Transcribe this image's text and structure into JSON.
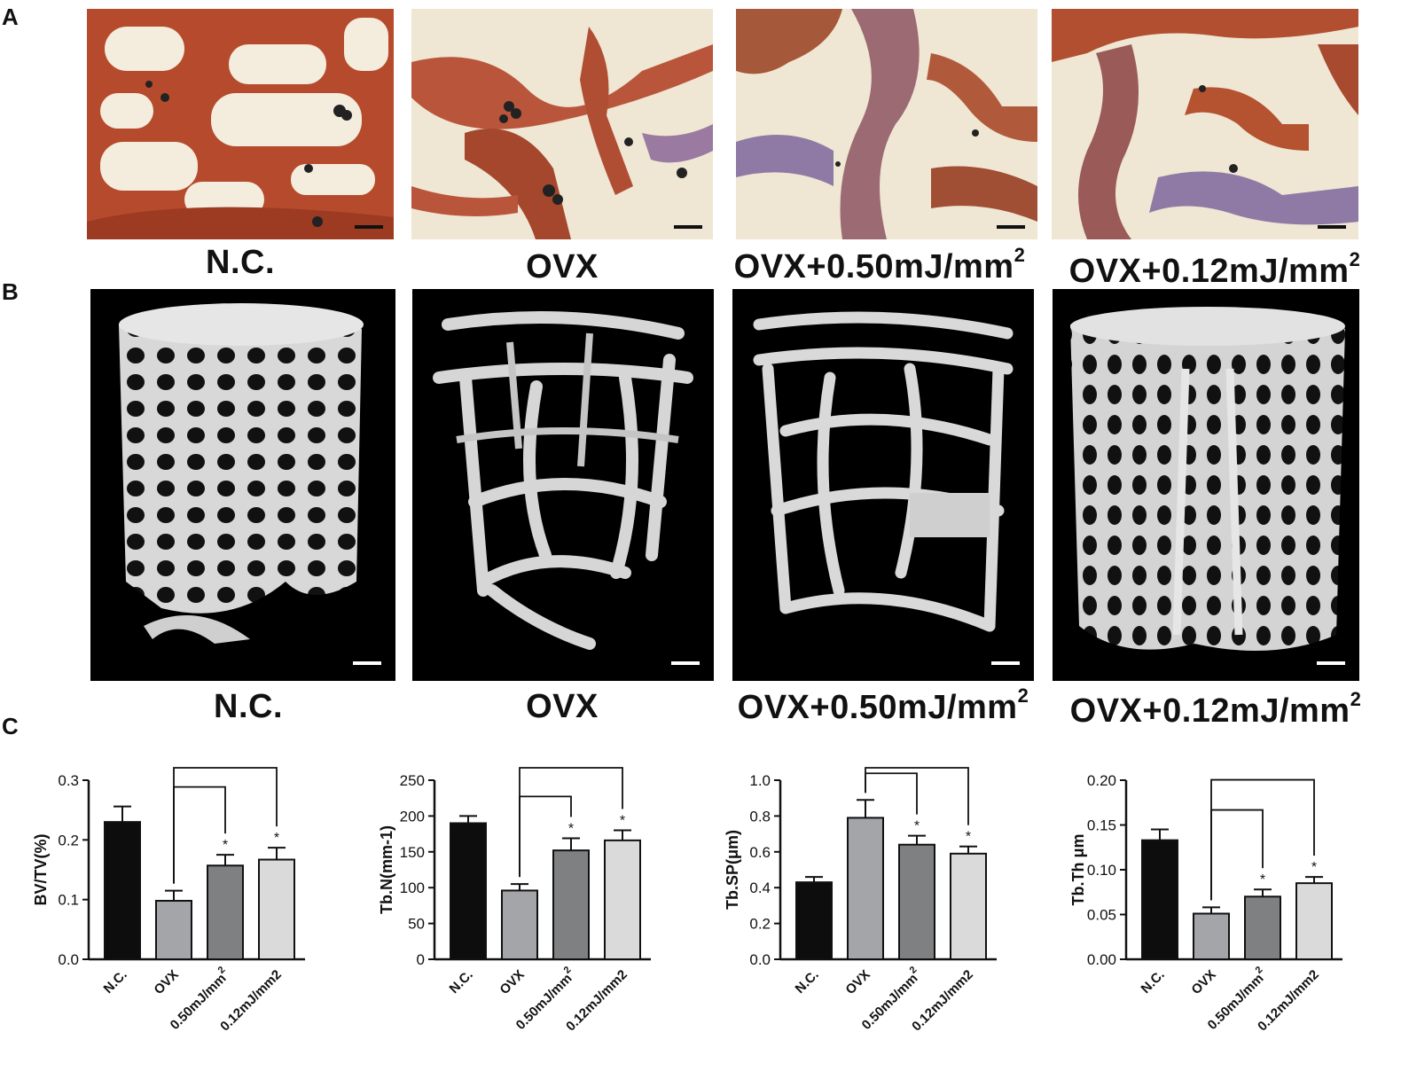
{
  "panels": {
    "a": "A",
    "b": "B",
    "c": "C"
  },
  "histology": {
    "labels": [
      "N.C.",
      "OVX",
      "OVX+0.50mJ/mm",
      "OVX+0.12mJ/mm"
    ],
    "label_superscripts": [
      "",
      "",
      "2",
      "2"
    ]
  },
  "microct": {
    "labels": [
      "N.C.",
      "OVX",
      "OVX+0.50mJ/mm",
      "OVX+0.12mJ/mm"
    ],
    "label_superscripts": [
      "",
      "",
      "2",
      "2"
    ]
  },
  "colors": {
    "nc": "#0d0d0d",
    "ovx": "#a3a5a9",
    "dose050": "#7f8081",
    "dose012": "#d9dad9",
    "stain_red": "#b2472a",
    "stain_purple": "#8e7aa6"
  },
  "chart_data": [
    {
      "type": "bar",
      "ylabel": "BV/TV(%)",
      "categories": [
        "N.C.",
        "OVX",
        "0.50mJ/mm^2",
        "0.12mJ/mm2"
      ],
      "category_labels": [
        "N.C.",
        "OVX",
        "0.50mJ/mm",
        "0.12mJ/mm2"
      ],
      "category_superscripts": [
        "",
        "",
        "2",
        ""
      ],
      "values": [
        0.23,
        0.098,
        0.157,
        0.167
      ],
      "errors": [
        0.026,
        0.017,
        0.018,
        0.02
      ],
      "ylim": [
        0,
        0.3
      ],
      "yticks": [
        "0.0",
        "0.1",
        "0.2",
        "0.3"
      ],
      "significance": [
        "",
        "",
        "*",
        "*"
      ],
      "comparisons": [
        [
          1,
          2
        ],
        [
          1,
          3
        ]
      ]
    },
    {
      "type": "bar",
      "ylabel": "Tb.N(mm-1)",
      "categories": [
        "N.C.",
        "OVX",
        "0.50mJ/mm^2",
        "0.12mJ/mm2"
      ],
      "category_labels": [
        "N.C.",
        "OVX",
        "0.50mJ/mm",
        "0.12mJ/mm2"
      ],
      "category_superscripts": [
        "",
        "",
        "2",
        ""
      ],
      "values": [
        190,
        96,
        152,
        166
      ],
      "errors": [
        10,
        9,
        17,
        14
      ],
      "ylim": [
        0,
        250
      ],
      "yticks": [
        "0",
        "50",
        "100",
        "150",
        "200",
        "250"
      ],
      "significance": [
        "",
        "",
        "*",
        "*"
      ],
      "comparisons": [
        [
          1,
          2
        ],
        [
          1,
          3
        ]
      ]
    },
    {
      "type": "bar",
      "ylabel": "Tb.SP(μm)",
      "categories": [
        "N.C.",
        "OVX",
        "0.50mJ/mm^2",
        "0.12mJ/mm2"
      ],
      "category_labels": [
        "N.C.",
        "OVX",
        "0.50mJ/mm",
        "0.12mJ/mm2"
      ],
      "category_superscripts": [
        "",
        "",
        "2",
        ""
      ],
      "values": [
        0.43,
        0.79,
        0.64,
        0.59
      ],
      "errors": [
        0.03,
        0.1,
        0.05,
        0.04
      ],
      "ylim": [
        0,
        1.0
      ],
      "yticks": [
        "0.0",
        "0.2",
        "0.4",
        "0.6",
        "0.8",
        "1.0"
      ],
      "significance": [
        "",
        "",
        "*",
        "*"
      ],
      "comparisons": [
        [
          1,
          2
        ],
        [
          1,
          3
        ]
      ]
    },
    {
      "type": "bar",
      "ylabel": "Tb.Th μm",
      "categories": [
        "N.C.",
        "OVX",
        "0.50mJ/mm^2",
        "0.12mJ/mm2"
      ],
      "category_labels": [
        "N.C.",
        "OVX",
        "0.50mJ/mm",
        "0.12mJ/mm2"
      ],
      "category_superscripts": [
        "",
        "",
        "2",
        ""
      ],
      "values": [
        0.133,
        0.051,
        0.07,
        0.085
      ],
      "errors": [
        0.012,
        0.007,
        0.008,
        0.007
      ],
      "ylim": [
        0,
        0.2
      ],
      "yticks": [
        "0.00",
        "0.05",
        "0.10",
        "0.15",
        "0.20"
      ],
      "significance": [
        "",
        "",
        "*",
        "*"
      ],
      "comparisons": [
        [
          1,
          2
        ],
        [
          1,
          3
        ]
      ]
    }
  ]
}
